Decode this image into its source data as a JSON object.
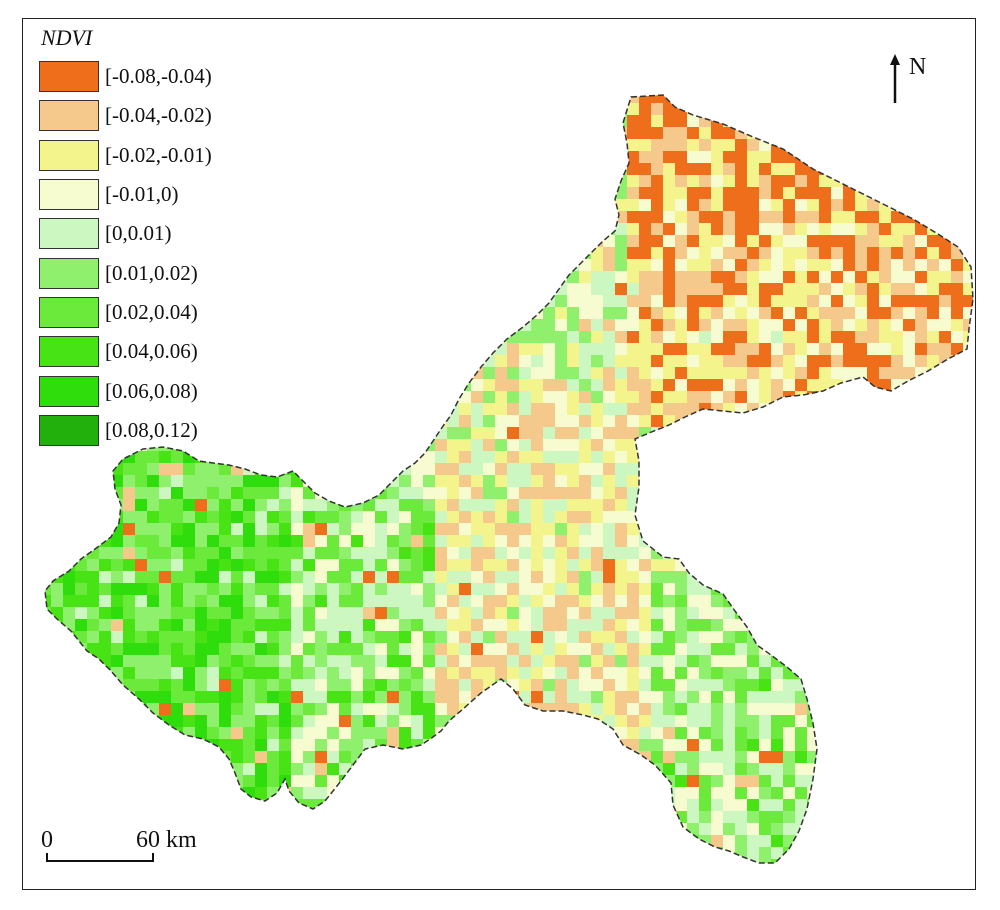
{
  "legend": {
    "title": "NDVI",
    "items": [
      {
        "label": "[-0.08,-0.04)",
        "color": "#ee6e1c"
      },
      {
        "label": "[-0.04,-0.02)",
        "color": "#f5c98b"
      },
      {
        "label": "[-0.02,-0.01)",
        "color": "#f3f58c"
      },
      {
        "label": "[-0.01,0)",
        "color": "#f6fbd0"
      },
      {
        "label": "[0,0.01)",
        "color": "#cdf7c0"
      },
      {
        "label": "[0.01,0.02)",
        "color": "#8ef06c"
      },
      {
        "label": "[0.02,0.04)",
        "color": "#6cea3c"
      },
      {
        "label": "[0.04,0.06)",
        "color": "#47e314"
      },
      {
        "label": "[0.06,0.08)",
        "color": "#2fdc0c"
      },
      {
        "label": "[0.08,0.12)",
        "color": "#22b00c"
      }
    ]
  },
  "north_arrow": {
    "label": "N"
  },
  "scale_bar": {
    "start_label": "0",
    "end_label": "60 km"
  },
  "map": {
    "border_color": "#333333",
    "border_style": "dashed"
  }
}
